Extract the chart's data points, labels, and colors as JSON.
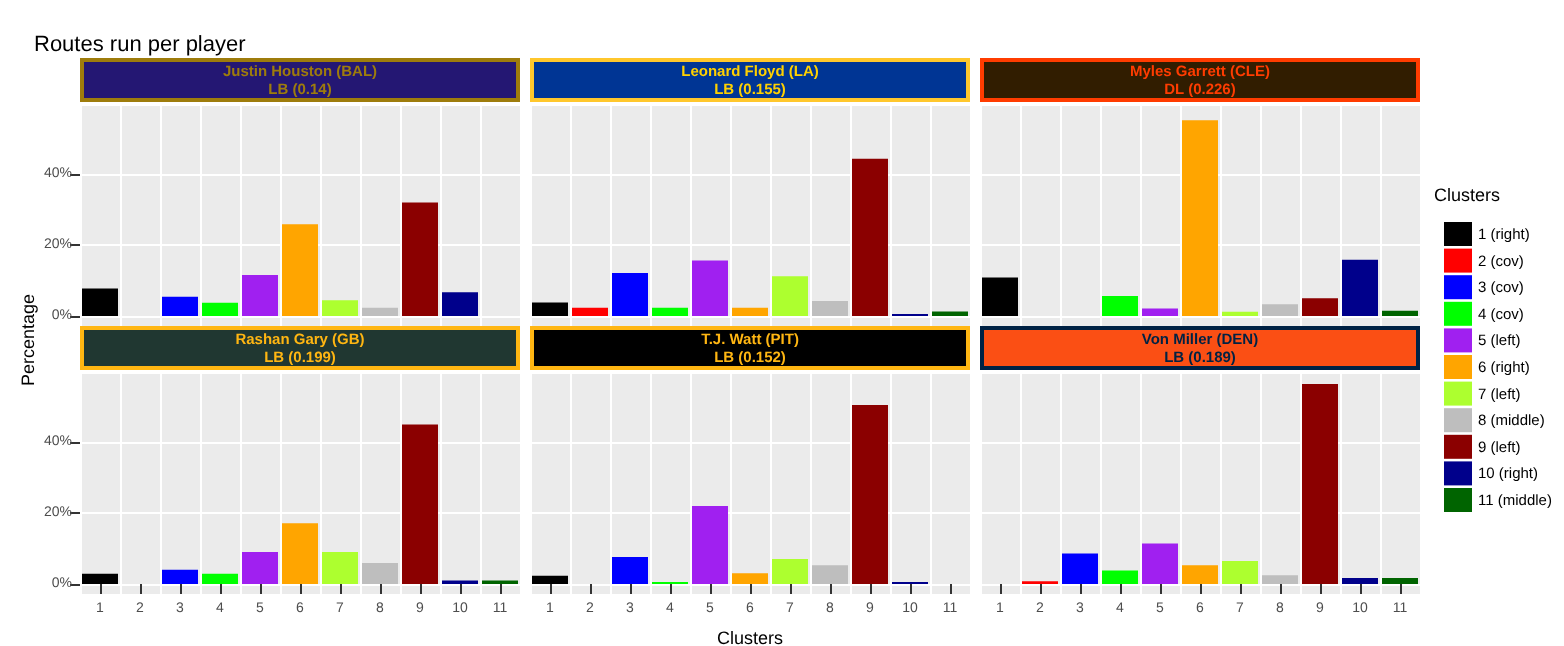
{
  "chart_data": [
    {
      "type": "bar",
      "title": "Routes run per player",
      "subtitle": "Justin Houston (BAL)\nLB (0.14)",
      "categories": [
        "1",
        "2",
        "3",
        "4",
        "5",
        "6",
        "7",
        "8",
        "9",
        "10",
        "11"
      ],
      "tick_labels": "y",
      "grid": true,
      "ylim": [
        -2.8,
        59
      ],
      "yticks": [
        {
          "value": 0,
          "label": "0%"
        },
        {
          "value": 20,
          "label": "20%"
        },
        {
          "value": 40,
          "label": "40%"
        }
      ],
      "series": [
        {
          "color": "#000000",
          "x": [
            "1"
          ],
          "values": [
            7.7
          ]
        },
        {
          "color": "#FF0000",
          "x": [
            "2"
          ],
          "values": [
            0
          ]
        },
        {
          "color": "#0000FF",
          "x": [
            "3"
          ],
          "values": [
            5.4
          ]
        },
        {
          "color": "#00FF00",
          "x": [
            "4"
          ],
          "values": [
            3.7
          ]
        },
        {
          "color": "#A020F0",
          "x": [
            "5"
          ],
          "values": [
            11.5
          ]
        },
        {
          "color": "#FFA500",
          "x": [
            "6"
          ],
          "values": [
            25.8
          ]
        },
        {
          "color": "#ADFF2F",
          "x": [
            "7"
          ],
          "values": [
            4.4
          ]
        },
        {
          "color": "#BEBEBE",
          "x": [
            "8"
          ],
          "values": [
            2.3
          ]
        },
        {
          "color": "#8B0000",
          "x": [
            "9"
          ],
          "values": [
            31.9
          ]
        },
        {
          "color": "#00008B",
          "x": [
            "10"
          ],
          "values": [
            6.7
          ]
        },
        {
          "color": "#006400",
          "x": [
            "11"
          ],
          "values": [
            0
          ]
        }
      ]
    },
    {
      "type": "bar",
      "subtitle": "Leonard Floyd (LA)\nLB (0.155)",
      "categories": [
        "1",
        "2",
        "3",
        "4",
        "5",
        "6",
        "7",
        "8",
        "9",
        "10",
        "11"
      ],
      "tick_labels": false,
      "grid": true,
      "ylim": [
        -2.8,
        59
      ],
      "yticks": [
        0,
        20,
        40
      ],
      "series": [
        {
          "color": "#000000",
          "x": [
            "1"
          ],
          "values": [
            3.8
          ]
        },
        {
          "color": "#FF0000",
          "x": [
            "2"
          ],
          "values": [
            2.3
          ]
        },
        {
          "color": "#0000FF",
          "x": [
            "3"
          ],
          "values": [
            12.1
          ]
        },
        {
          "color": "#00FF00",
          "x": [
            "4"
          ],
          "values": [
            2.3
          ]
        },
        {
          "color": "#A020F0",
          "x": [
            "5"
          ],
          "values": [
            15.6
          ]
        },
        {
          "color": "#FFA500",
          "x": [
            "6"
          ],
          "values": [
            2.3
          ]
        },
        {
          "color": "#ADFF2F",
          "x": [
            "7"
          ],
          "values": [
            11.2
          ]
        },
        {
          "color": "#BEBEBE",
          "x": [
            "8"
          ],
          "values": [
            4.2
          ]
        },
        {
          "color": "#8B0000",
          "x": [
            "9"
          ],
          "values": [
            44.2
          ]
        },
        {
          "color": "#00008B",
          "x": [
            "10"
          ],
          "values": [
            0.6
          ]
        },
        {
          "color": "#006400",
          "x": [
            "11"
          ],
          "values": [
            1.3
          ]
        }
      ]
    },
    {
      "type": "bar",
      "subtitle": "Myles Garrett (CLE)\nDL (0.226)",
      "legend_title": "Clusters",
      "legend": "right",
      "categories": [
        "1",
        "2",
        "3",
        "4",
        "5",
        "6",
        "7",
        "8",
        "9",
        "10",
        "11"
      ],
      "tick_labels": false,
      "grid": true,
      "ylim": [
        -2.8,
        59
      ],
      "yticks": [
        0,
        20,
        40
      ],
      "series": [
        {
          "name": "1 (right)",
          "color": "#000000",
          "x": [
            "1"
          ],
          "values": [
            10.8
          ]
        },
        {
          "name": "2 (cov)",
          "color": "#FF0000",
          "x": [
            "2"
          ],
          "values": [
            0
          ]
        },
        {
          "name": "3 (cov)",
          "color": "#0000FF",
          "x": [
            "3"
          ],
          "values": [
            0
          ]
        },
        {
          "name": "4 (cov)",
          "color": "#00FF00",
          "x": [
            "4"
          ],
          "values": [
            5.6
          ]
        },
        {
          "name": "5 (left)",
          "color": "#A020F0",
          "x": [
            "5"
          ],
          "values": [
            2.1
          ]
        },
        {
          "name": "6 (right)",
          "color": "#FFA500",
          "x": [
            "6"
          ],
          "values": [
            55
          ]
        },
        {
          "name": "7 (left)",
          "color": "#ADFF2F",
          "x": [
            "7"
          ],
          "values": [
            1.2
          ]
        },
        {
          "name": "8 (middle)",
          "color": "#BEBEBE",
          "x": [
            "8"
          ],
          "values": [
            3.3
          ]
        },
        {
          "name": "9 (left)",
          "color": "#8B0000",
          "x": [
            "9"
          ],
          "values": [
            5
          ]
        },
        {
          "name": "10 (right)",
          "color": "#00008B",
          "x": [
            "10"
          ],
          "values": [
            15.8
          ]
        },
        {
          "name": "11 (middle)",
          "color": "#006400",
          "x": [
            "11"
          ],
          "values": [
            1.5
          ]
        }
      ]
    },
    {
      "type": "bar",
      "subtitle": "Rashan Gary (GB)\nLB (0.199)",
      "ylabel": "Percentage",
      "categories": [
        "1",
        "2",
        "3",
        "4",
        "5",
        "6",
        "7",
        "8",
        "9",
        "10",
        "11"
      ],
      "grid": true,
      "ylim": [
        -2.8,
        59
      ],
      "yticks": [
        {
          "value": 0,
          "label": "0%"
        },
        {
          "value": 20,
          "label": "20%"
        },
        {
          "value": 40,
          "label": "40%"
        }
      ],
      "series": [
        {
          "color": "#000000",
          "x": [
            "1"
          ],
          "values": [
            2.9
          ]
        },
        {
          "color": "#FF0000",
          "x": [
            "2"
          ],
          "values": [
            0
          ]
        },
        {
          "color": "#0000FF",
          "x": [
            "3"
          ],
          "values": [
            4
          ]
        },
        {
          "color": "#00FF00",
          "x": [
            "4"
          ],
          "values": [
            2.9
          ]
        },
        {
          "color": "#A020F0",
          "x": [
            "5"
          ],
          "values": [
            9
          ]
        },
        {
          "color": "#FFA500",
          "x": [
            "6"
          ],
          "values": [
            17.1
          ]
        },
        {
          "color": "#ADFF2F",
          "x": [
            "7"
          ],
          "values": [
            9
          ]
        },
        {
          "color": "#BEBEBE",
          "x": [
            "8"
          ],
          "values": [
            5.9
          ]
        },
        {
          "color": "#8B0000",
          "x": [
            "9"
          ],
          "values": [
            44.8
          ]
        },
        {
          "color": "#00008B",
          "x": [
            "10"
          ],
          "values": [
            1
          ]
        },
        {
          "color": "#006400",
          "x": [
            "11"
          ],
          "values": [
            1
          ]
        }
      ]
    },
    {
      "type": "bar",
      "subtitle": "T.J. Watt (PIT)\nLB (0.152)",
      "xlabel": "Clusters",
      "categories": [
        "1",
        "2",
        "3",
        "4",
        "5",
        "6",
        "7",
        "8",
        "9",
        "10",
        "11"
      ],
      "tick_labels": "x",
      "grid": true,
      "ylim": [
        -2.8,
        59
      ],
      "yticks": [
        0,
        20,
        40
      ],
      "series": [
        {
          "color": "#000000",
          "x": [
            "1"
          ],
          "values": [
            2.3
          ]
        },
        {
          "color": "#FF0000",
          "x": [
            "2"
          ],
          "values": [
            0
          ]
        },
        {
          "color": "#0000FF",
          "x": [
            "3"
          ],
          "values": [
            7.6
          ]
        },
        {
          "color": "#00FF00",
          "x": [
            "4"
          ],
          "values": [
            0.6
          ]
        },
        {
          "color": "#A020F0",
          "x": [
            "5"
          ],
          "values": [
            21.9
          ]
        },
        {
          "color": "#FFA500",
          "x": [
            "6"
          ],
          "values": [
            3
          ]
        },
        {
          "color": "#ADFF2F",
          "x": [
            "7"
          ],
          "values": [
            7
          ]
        },
        {
          "color": "#BEBEBE",
          "x": [
            "8"
          ],
          "values": [
            5.3
          ]
        },
        {
          "color": "#8B0000",
          "x": [
            "9"
          ],
          "values": [
            50.3
          ]
        },
        {
          "color": "#00008B",
          "x": [
            "10"
          ],
          "values": [
            0.6
          ]
        },
        {
          "color": "#006400",
          "x": [
            "11"
          ],
          "values": [
            0
          ]
        }
      ]
    },
    {
      "type": "bar",
      "subtitle": "Von Miller (DEN)\nLB (0.189)",
      "categories": [
        "1",
        "2",
        "3",
        "4",
        "5",
        "6",
        "7",
        "8",
        "9",
        "10",
        "11"
      ],
      "tick_labels": "x",
      "grid": true,
      "ylim": [
        -2.8,
        59
      ],
      "yticks": [
        0,
        20,
        40
      ],
      "series": [
        {
          "color": "#000000",
          "x": [
            "1"
          ],
          "values": [
            0
          ]
        },
        {
          "color": "#FF0000",
          "x": [
            "2"
          ],
          "values": [
            0.8
          ]
        },
        {
          "color": "#0000FF",
          "x": [
            "3"
          ],
          "values": [
            8.6
          ]
        },
        {
          "color": "#00FF00",
          "x": [
            "4"
          ],
          "values": [
            3.8
          ]
        },
        {
          "color": "#A020F0",
          "x": [
            "5"
          ],
          "values": [
            11.4
          ]
        },
        {
          "color": "#FFA500",
          "x": [
            "6"
          ],
          "values": [
            5.3
          ]
        },
        {
          "color": "#ADFF2F",
          "x": [
            "7"
          ],
          "values": [
            6.5
          ]
        },
        {
          "color": "#BEBEBE",
          "x": [
            "8"
          ],
          "values": [
            2.5
          ]
        },
        {
          "color": "#8B0000",
          "x": [
            "9"
          ],
          "values": [
            56.2
          ]
        },
        {
          "color": "#00008B",
          "x": [
            "10"
          ],
          "values": [
            1.7
          ]
        },
        {
          "color": "#006400",
          "x": [
            "11"
          ],
          "values": [
            1.7
          ]
        }
      ]
    }
  ]
}
